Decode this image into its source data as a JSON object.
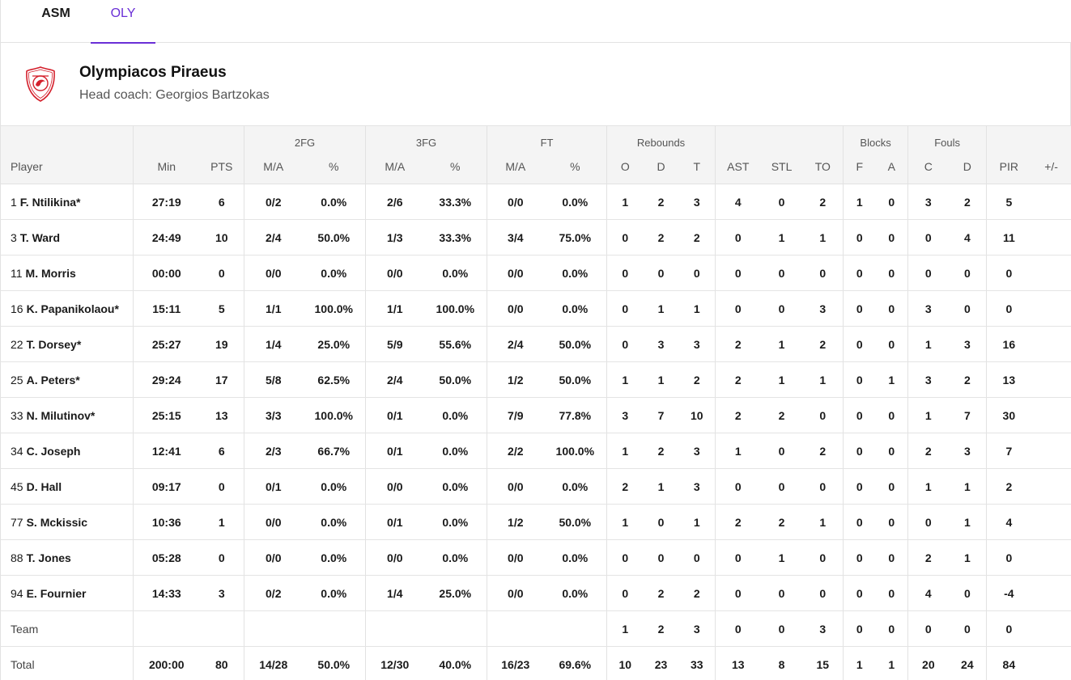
{
  "tabs": [
    {
      "label": "ASM",
      "active": false
    },
    {
      "label": "OLY",
      "active": true
    }
  ],
  "team": {
    "name": "Olympiacos Piraeus",
    "coach": "Head coach: Georgios Bartzokas"
  },
  "colors": {
    "accent": "#6a2fd6",
    "logo_red": "#d4202c"
  },
  "table": {
    "groups": {
      "fg2": "2FG",
      "fg3": "3FG",
      "ft": "FT",
      "reb": "Rebounds",
      "blk": "Blocks",
      "fouls": "Fouls"
    },
    "columns": [
      "Player",
      "Min",
      "PTS",
      "M/A",
      "%",
      "M/A",
      "%",
      "M/A",
      "%",
      "O",
      "D",
      "T",
      "AST",
      "STL",
      "TO",
      "F",
      "A",
      "C",
      "D",
      "PIR",
      "+/-"
    ],
    "rows": [
      {
        "num": "1",
        "name": "F. Ntilikina*",
        "cells": [
          "27:19",
          "6",
          "0/2",
          "0.0%",
          "2/6",
          "33.3%",
          "0/0",
          "0.0%",
          "1",
          "2",
          "3",
          "4",
          "0",
          "2",
          "1",
          "0",
          "3",
          "2",
          "5",
          ""
        ]
      },
      {
        "num": "3",
        "name": "T. Ward",
        "cells": [
          "24:49",
          "10",
          "2/4",
          "50.0%",
          "1/3",
          "33.3%",
          "3/4",
          "75.0%",
          "0",
          "2",
          "2",
          "0",
          "1",
          "1",
          "0",
          "0",
          "0",
          "4",
          "11",
          ""
        ]
      },
      {
        "num": "11",
        "name": "M. Morris",
        "cells": [
          "00:00",
          "0",
          "0/0",
          "0.0%",
          "0/0",
          "0.0%",
          "0/0",
          "0.0%",
          "0",
          "0",
          "0",
          "0",
          "0",
          "0",
          "0",
          "0",
          "0",
          "0",
          "0",
          ""
        ]
      },
      {
        "num": "16",
        "name": "K. Papanikolaou*",
        "cells": [
          "15:11",
          "5",
          "1/1",
          "100.0%",
          "1/1",
          "100.0%",
          "0/0",
          "0.0%",
          "0",
          "1",
          "1",
          "0",
          "0",
          "3",
          "0",
          "0",
          "3",
          "0",
          "0",
          ""
        ]
      },
      {
        "num": "22",
        "name": "T. Dorsey*",
        "cells": [
          "25:27",
          "19",
          "1/4",
          "25.0%",
          "5/9",
          "55.6%",
          "2/4",
          "50.0%",
          "0",
          "3",
          "3",
          "2",
          "1",
          "2",
          "0",
          "0",
          "1",
          "3",
          "16",
          ""
        ]
      },
      {
        "num": "25",
        "name": "A. Peters*",
        "cells": [
          "29:24",
          "17",
          "5/8",
          "62.5%",
          "2/4",
          "50.0%",
          "1/2",
          "50.0%",
          "1",
          "1",
          "2",
          "2",
          "1",
          "1",
          "0",
          "1",
          "3",
          "2",
          "13",
          ""
        ]
      },
      {
        "num": "33",
        "name": "N. Milutinov*",
        "cells": [
          "25:15",
          "13",
          "3/3",
          "100.0%",
          "0/1",
          "0.0%",
          "7/9",
          "77.8%",
          "3",
          "7",
          "10",
          "2",
          "2",
          "0",
          "0",
          "0",
          "1",
          "7",
          "30",
          ""
        ]
      },
      {
        "num": "34",
        "name": "C. Joseph",
        "cells": [
          "12:41",
          "6",
          "2/3",
          "66.7%",
          "0/1",
          "0.0%",
          "2/2",
          "100.0%",
          "1",
          "2",
          "3",
          "1",
          "0",
          "2",
          "0",
          "0",
          "2",
          "3",
          "7",
          ""
        ]
      },
      {
        "num": "45",
        "name": "D. Hall",
        "cells": [
          "09:17",
          "0",
          "0/1",
          "0.0%",
          "0/0",
          "0.0%",
          "0/0",
          "0.0%",
          "2",
          "1",
          "3",
          "0",
          "0",
          "0",
          "0",
          "0",
          "1",
          "1",
          "2",
          ""
        ]
      },
      {
        "num": "77",
        "name": "S. Mckissic",
        "cells": [
          "10:36",
          "1",
          "0/0",
          "0.0%",
          "0/1",
          "0.0%",
          "1/2",
          "50.0%",
          "1",
          "0",
          "1",
          "2",
          "2",
          "1",
          "0",
          "0",
          "0",
          "1",
          "4",
          ""
        ]
      },
      {
        "num": "88",
        "name": "T. Jones",
        "cells": [
          "05:28",
          "0",
          "0/0",
          "0.0%",
          "0/0",
          "0.0%",
          "0/0",
          "0.0%",
          "0",
          "0",
          "0",
          "0",
          "1",
          "0",
          "0",
          "0",
          "2",
          "1",
          "0",
          ""
        ]
      },
      {
        "num": "94",
        "name": "E. Fournier",
        "cells": [
          "14:33",
          "3",
          "0/2",
          "0.0%",
          "1/4",
          "25.0%",
          "0/0",
          "0.0%",
          "0",
          "2",
          "2",
          "0",
          "0",
          "0",
          "0",
          "0",
          "4",
          "0",
          "-4",
          ""
        ]
      }
    ],
    "team_row": {
      "label": "Team",
      "cells": [
        "",
        "",
        "",
        "",
        "",
        "",
        "",
        "",
        "1",
        "2",
        "3",
        "0",
        "0",
        "3",
        "0",
        "0",
        "0",
        "0",
        "0",
        ""
      ]
    },
    "total_row": {
      "label": "Total",
      "cells": [
        "200:00",
        "80",
        "14/28",
        "50.0%",
        "12/30",
        "40.0%",
        "16/23",
        "69.6%",
        "10",
        "23",
        "33",
        "13",
        "8",
        "15",
        "1",
        "1",
        "20",
        "24",
        "84",
        ""
      ]
    }
  }
}
